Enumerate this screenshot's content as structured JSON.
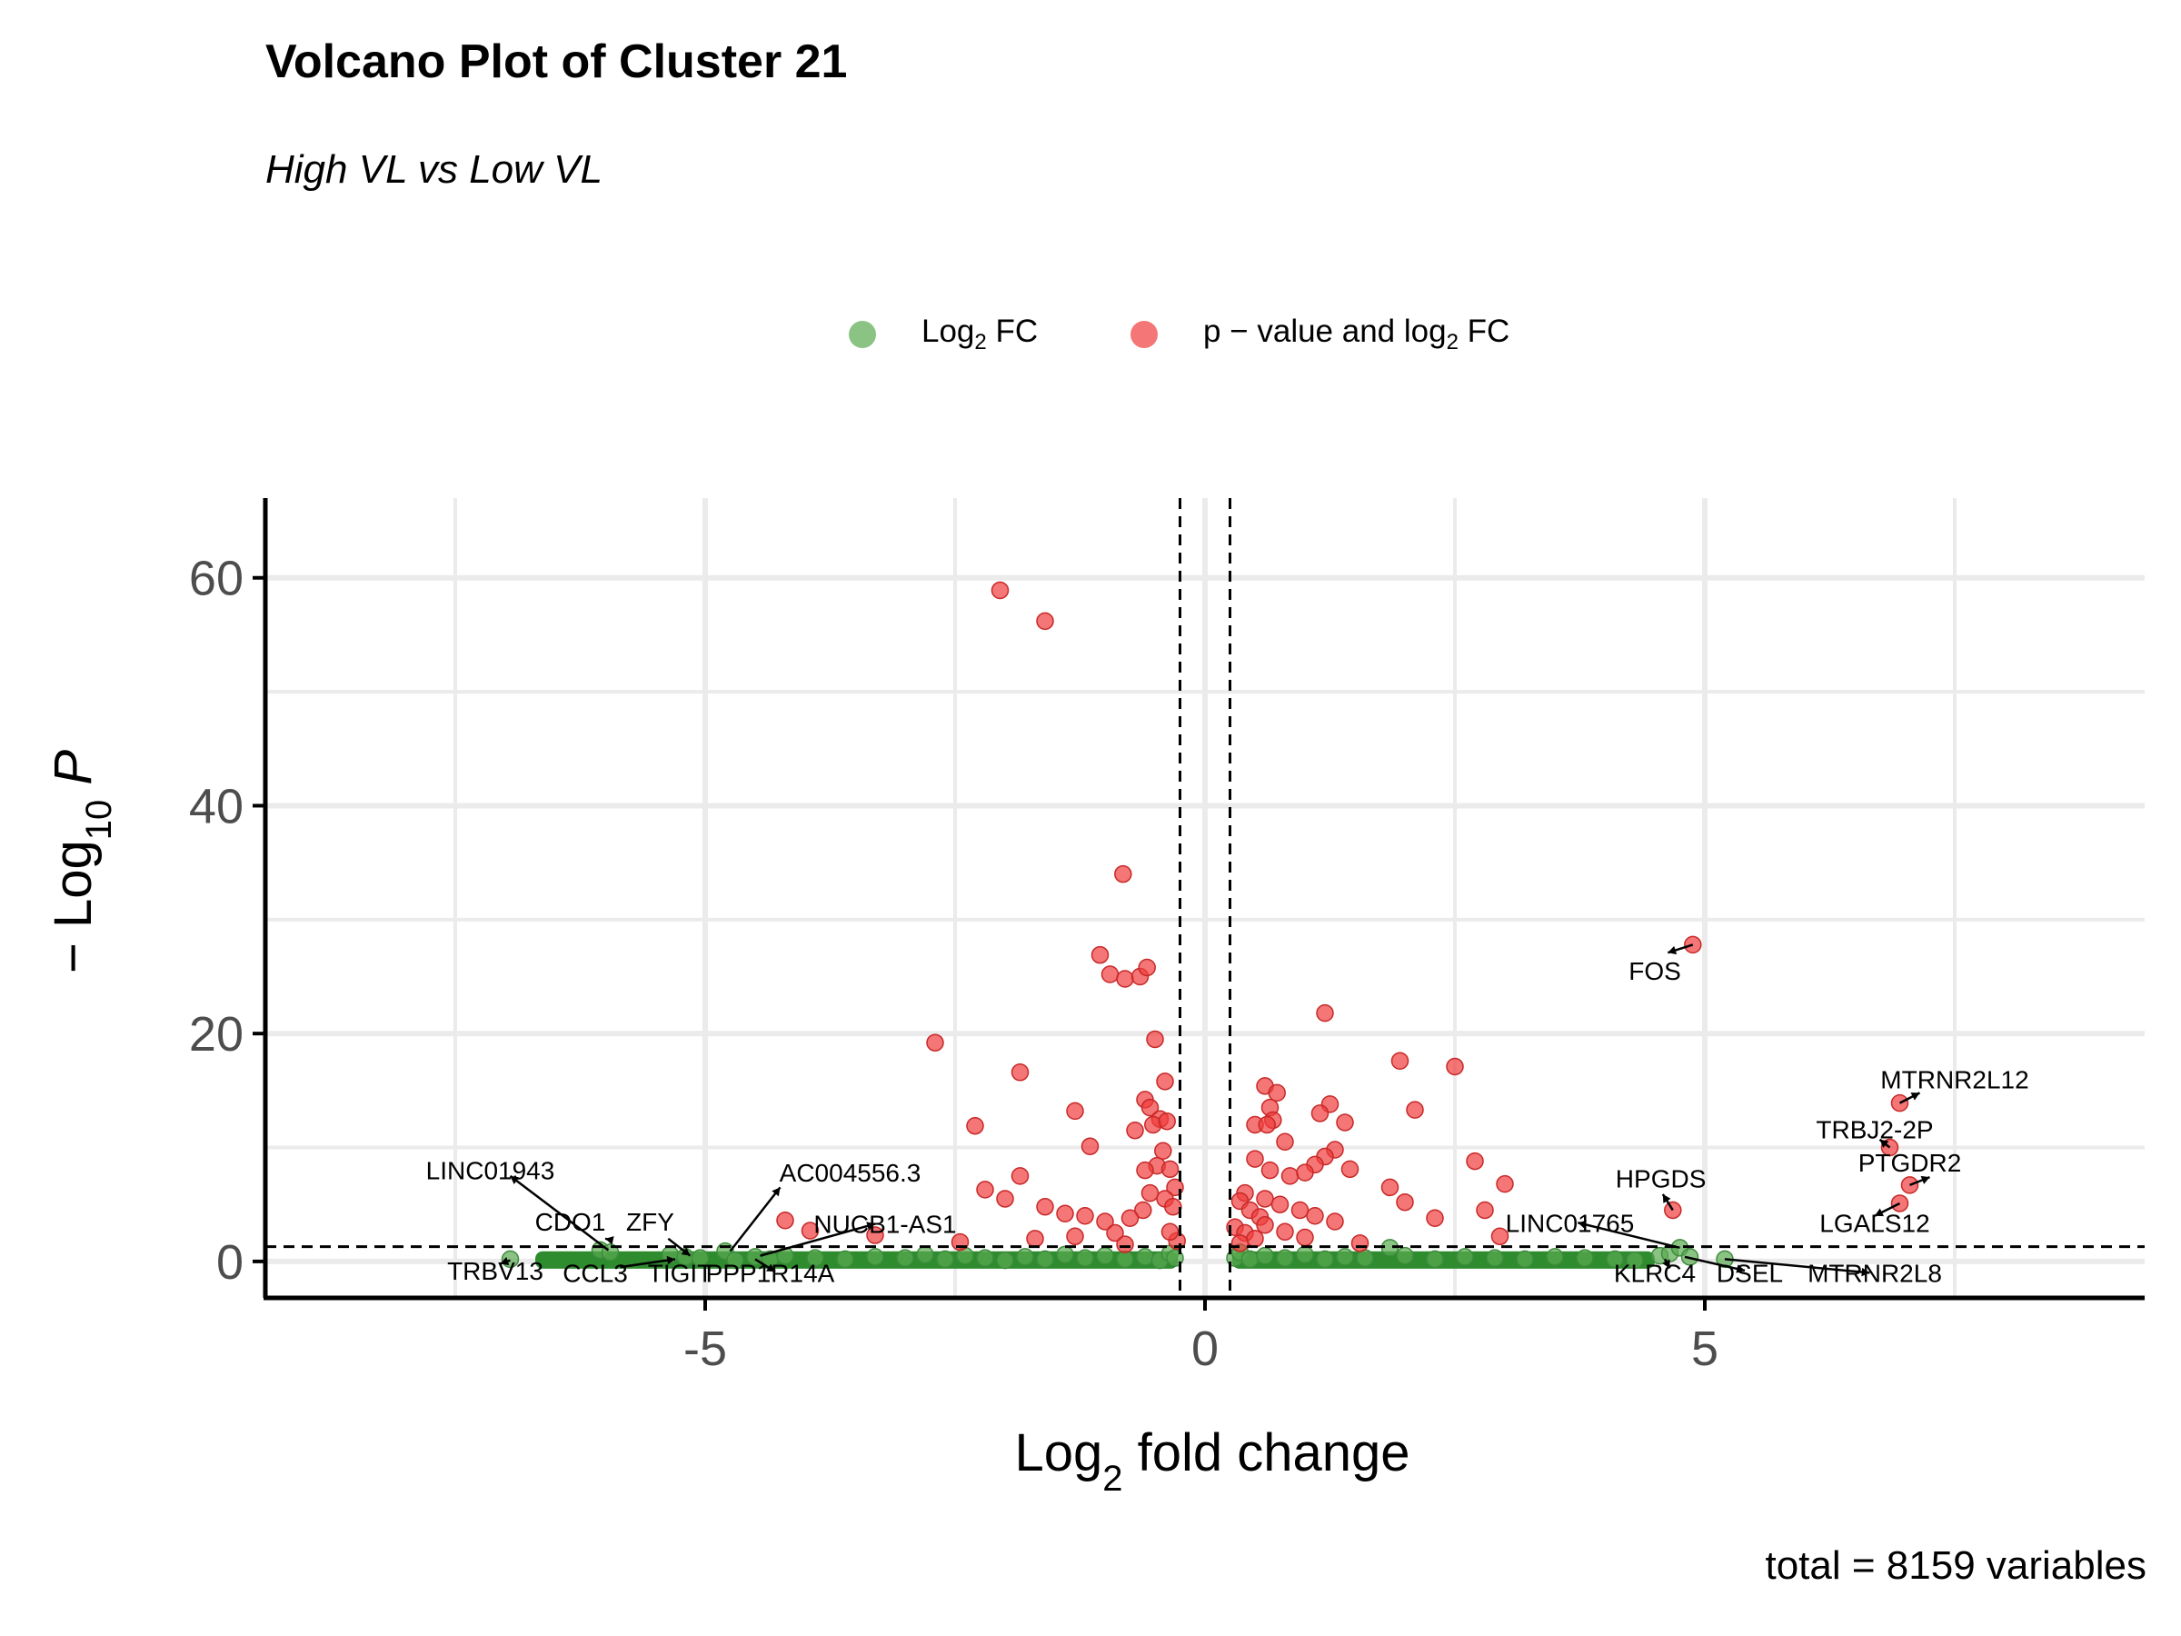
{
  "chart_data": {
    "type": "scatter",
    "title": "Volcano Plot of Cluster 21",
    "subtitle": "High VL vs Low VL",
    "caption": "total = 8159 variables",
    "xlabel": "Log2 fold change",
    "ylabel": "− Log10 P",
    "xlim": [
      -9.4,
      9.4
    ],
    "ylim": [
      -3.2,
      67
    ],
    "x_ticks": [
      -5,
      0,
      5
    ],
    "x_tick_labels": [
      "-5",
      "0",
      "5"
    ],
    "y_ticks": [
      0,
      20,
      40,
      60
    ],
    "y_tick_labels": [
      "0",
      "20",
      "40",
      "60"
    ],
    "grid": true,
    "legend_position": "top",
    "cutoffs": {
      "log2fc": [
        -0.25,
        0.25
      ],
      "neg_log10_p": 1.3
    },
    "series": [
      {
        "name": "Log2 FC",
        "label_main": "Log",
        "label_sub": "2",
        "label_rest": " FC",
        "color": "#5aaa50",
        "points": [
          [
            -6.95,
            0.2
          ],
          [
            -6.05,
            1.0
          ],
          [
            -5.95,
            0.8
          ],
          [
            -5.35,
            0.6
          ],
          [
            -5.2,
            0.4
          ],
          [
            -5.05,
            0.3
          ],
          [
            -4.8,
            0.9
          ],
          [
            -4.7,
            0.1
          ],
          [
            -4.5,
            0.4
          ],
          [
            -4.35,
            0.2
          ],
          [
            -4.2,
            0.5
          ],
          [
            -3.9,
            0.3
          ],
          [
            -3.6,
            0.2
          ],
          [
            -3.3,
            0.4
          ],
          [
            -3.0,
            0.3
          ],
          [
            -2.8,
            0.6
          ],
          [
            -2.6,
            0.2
          ],
          [
            -2.4,
            0.5
          ],
          [
            -2.2,
            0.3
          ],
          [
            -2.0,
            0.1
          ],
          [
            -1.8,
            0.4
          ],
          [
            -1.6,
            0.2
          ],
          [
            -1.4,
            0.6
          ],
          [
            -1.2,
            0.3
          ],
          [
            -1.0,
            0.5
          ],
          [
            -0.8,
            0.2
          ],
          [
            -0.6,
            0.4
          ],
          [
            -0.45,
            0.1
          ],
          [
            -0.35,
            0.7
          ],
          [
            -0.3,
            0.3
          ],
          [
            0.3,
            0.3
          ],
          [
            0.35,
            0.8
          ],
          [
            0.45,
            0.2
          ],
          [
            0.6,
            0.5
          ],
          [
            0.8,
            0.3
          ],
          [
            1.0,
            0.6
          ],
          [
            1.2,
            0.2
          ],
          [
            1.4,
            0.4
          ],
          [
            1.6,
            0.3
          ],
          [
            1.85,
            1.2
          ],
          [
            2.0,
            0.5
          ],
          [
            2.3,
            0.2
          ],
          [
            2.6,
            0.4
          ],
          [
            2.9,
            0.3
          ],
          [
            3.2,
            0.2
          ],
          [
            3.5,
            0.4
          ],
          [
            3.8,
            0.3
          ],
          [
            4.1,
            0.2
          ],
          [
            4.3,
            0.1
          ],
          [
            4.55,
            0.5
          ],
          [
            4.65,
            0.7
          ],
          [
            4.75,
            1.2
          ],
          [
            4.85,
            0.4
          ],
          [
            5.2,
            0.2
          ]
        ],
        "bands": [
          [
            -6.7,
            -0.27,
            0.0,
            0.25
          ],
          [
            0.27,
            4.5,
            0.0,
            0.25
          ]
        ]
      },
      {
        "name": "p − value and log2 FC",
        "label_main": "p − value and log",
        "label_sub": "2",
        "label_rest": " FC",
        "color": "#f03c3c",
        "points": [
          [
            -2.05,
            58.9
          ],
          [
            -1.6,
            56.2
          ],
          [
            -0.82,
            34.0
          ],
          [
            -1.05,
            26.9
          ],
          [
            -0.95,
            25.2
          ],
          [
            -0.8,
            24.8
          ],
          [
            -0.65,
            25.0
          ],
          [
            -0.58,
            25.8
          ],
          [
            -0.5,
            19.5
          ],
          [
            -2.7,
            19.2
          ],
          [
            -1.85,
            16.6
          ],
          [
            -0.4,
            15.8
          ],
          [
            -0.6,
            14.2
          ],
          [
            -0.55,
            13.5
          ],
          [
            -0.45,
            12.5
          ],
          [
            -0.52,
            12.0
          ],
          [
            -0.38,
            12.3
          ],
          [
            -1.3,
            13.2
          ],
          [
            -2.3,
            11.9
          ],
          [
            -0.7,
            11.5
          ],
          [
            -1.15,
            10.1
          ],
          [
            -0.42,
            9.7
          ],
          [
            -0.48,
            8.4
          ],
          [
            -0.6,
            8.0
          ],
          [
            -0.35,
            8.1
          ],
          [
            -0.3,
            6.5
          ],
          [
            -0.55,
            6.0
          ],
          [
            -0.4,
            5.5
          ],
          [
            -0.62,
            4.5
          ],
          [
            -1.85,
            7.5
          ],
          [
            -2.0,
            5.5
          ],
          [
            -2.2,
            6.3
          ],
          [
            -1.6,
            4.8
          ],
          [
            -1.4,
            4.2
          ],
          [
            -1.2,
            4.0
          ],
          [
            -1.0,
            3.5
          ],
          [
            -0.9,
            2.5
          ],
          [
            -0.75,
            3.8
          ],
          [
            -4.2,
            3.6
          ],
          [
            -3.95,
            2.7
          ],
          [
            -3.3,
            2.3
          ],
          [
            -2.45,
            1.7
          ],
          [
            -1.7,
            2.0
          ],
          [
            -1.3,
            2.2
          ],
          [
            -0.8,
            1.5
          ],
          [
            -0.28,
            1.8
          ],
          [
            -0.35,
            2.6
          ],
          [
            -0.32,
            4.8
          ],
          [
            4.88,
            27.8
          ],
          [
            1.2,
            21.8
          ],
          [
            1.95,
            17.6
          ],
          [
            2.5,
            17.1
          ],
          [
            0.6,
            15.4
          ],
          [
            0.72,
            14.8
          ],
          [
            1.25,
            13.8
          ],
          [
            1.15,
            13.0
          ],
          [
            0.65,
            13.5
          ],
          [
            2.1,
            13.3
          ],
          [
            0.68,
            12.4
          ],
          [
            1.4,
            12.2
          ],
          [
            0.5,
            12.0
          ],
          [
            0.62,
            12.0
          ],
          [
            0.8,
            10.5
          ],
          [
            1.3,
            9.8
          ],
          [
            1.2,
            9.2
          ],
          [
            1.1,
            8.5
          ],
          [
            0.5,
            9.0
          ],
          [
            0.65,
            8.0
          ],
          [
            0.85,
            7.5
          ],
          [
            1.0,
            7.8
          ],
          [
            1.45,
            8.1
          ],
          [
            2.7,
            8.8
          ],
          [
            3.0,
            6.8
          ],
          [
            1.85,
            6.5
          ],
          [
            0.4,
            6.0
          ],
          [
            0.6,
            5.5
          ],
          [
            0.75,
            5.0
          ],
          [
            0.95,
            4.5
          ],
          [
            1.1,
            4.0
          ],
          [
            1.3,
            3.5
          ],
          [
            0.35,
            5.3
          ],
          [
            0.45,
            4.5
          ],
          [
            0.55,
            3.9
          ],
          [
            0.3,
            3.0
          ],
          [
            0.4,
            2.5
          ],
          [
            0.5,
            2.0
          ],
          [
            0.35,
            1.6
          ],
          [
            2.0,
            5.2
          ],
          [
            2.3,
            3.8
          ],
          [
            2.95,
            2.2
          ],
          [
            1.55,
            1.6
          ],
          [
            2.8,
            4.5
          ],
          [
            1.0,
            2.1
          ],
          [
            0.8,
            2.6
          ],
          [
            0.6,
            3.2
          ],
          [
            6.95,
            13.9
          ],
          [
            6.85,
            10.0
          ],
          [
            7.05,
            6.7
          ],
          [
            6.95,
            5.1
          ],
          [
            4.68,
            4.5
          ]
        ]
      }
    ],
    "labels": [
      {
        "gene": "LINC01943",
        "text_at": [
          -7.15,
          8.0
        ],
        "point": [
          -5.97,
          1.0
        ]
      },
      {
        "gene": "CDO1",
        "text_at": [
          -6.35,
          3.5
        ],
        "point": [
          -5.95,
          1.9
        ]
      },
      {
        "gene": "ZFY",
        "text_at": [
          -5.55,
          3.5
        ],
        "point": [
          -5.37,
          2.0
        ]
      },
      {
        "gene": "TRBV13",
        "text_at": [
          -7.1,
          -0.8
        ],
        "point": [
          -6.95,
          0.1
        ]
      },
      {
        "gene": "CCL3",
        "text_at": [
          -6.1,
          -1.0
        ],
        "point": [
          -5.85,
          -0.5
        ]
      },
      {
        "gene": "TIGIT",
        "text_at": [
          -5.25,
          -1.0
        ],
        "point": [
          -5.1,
          0.2
        ]
      },
      {
        "gene": "AC004556.3",
        "text_at": [
          -3.55,
          7.8
        ],
        "point": [
          -4.25,
          6.5
        ]
      },
      {
        "gene": "NUCB1-AS1",
        "text_at": [
          -3.2,
          3.3
        ],
        "point": [
          -3.3,
          3.3
        ]
      },
      {
        "gene": "PPP1R14A",
        "text_at": [
          -4.35,
          -1.0
        ],
        "point": [
          -4.3,
          -0.9
        ]
      },
      {
        "gene": "FOS",
        "text_at": [
          4.5,
          25.5
        ],
        "point": [
          4.63,
          27.1
        ]
      },
      {
        "gene": "MTRNR2L12",
        "text_at": [
          7.5,
          16.0
        ],
        "point": [
          7.15,
          14.8
        ]
      },
      {
        "gene": "TRBJ2-2P",
        "text_at": [
          6.7,
          11.6
        ],
        "point": [
          6.75,
          10.7
        ]
      },
      {
        "gene": "PTGDR2",
        "text_at": [
          7.05,
          8.7
        ],
        "point": [
          7.25,
          7.4
        ]
      },
      {
        "gene": "HPGDS",
        "text_at": [
          4.56,
          7.3
        ],
        "point": [
          4.58,
          5.9
        ]
      },
      {
        "gene": "LGALS12",
        "text_at": [
          6.7,
          3.4
        ],
        "point": [
          6.7,
          4.8
        ]
      },
      {
        "gene": "LINC01765",
        "text_at": [
          3.65,
          3.4
        ],
        "point": [
          3.73,
          3.4
        ]
      },
      {
        "gene": "KLRC4",
        "text_at": [
          4.5,
          -1.0
        ],
        "point": [
          4.65,
          -0.6
        ]
      },
      {
        "gene": "DSEL",
        "text_at": [
          5.45,
          -1.0
        ],
        "point": [
          5.4,
          -0.8
        ]
      },
      {
        "gene": "MTRNR2L8",
        "text_at": [
          6.7,
          -1.0
        ],
        "point": [
          6.65,
          -1.0
        ]
      }
    ],
    "label_lines": [
      [
        [
          -5.97,
          1.0
        ],
        [
          -6.95,
          7.5
        ]
      ],
      [
        [
          -5.95,
          1.9
        ],
        [
          -6.0,
          2.0
        ]
      ],
      [
        [
          -5.37,
          2.0
        ],
        [
          -5.15,
          0.5
        ]
      ],
      [
        [
          -6.95,
          0.1
        ],
        [
          -7.05,
          -0.2
        ]
      ],
      [
        [
          -5.85,
          -0.5
        ],
        [
          -5.3,
          0.2
        ]
      ],
      [
        [
          -4.75,
          0.9
        ],
        [
          -4.25,
          6.5
        ]
      ],
      [
        [
          -4.45,
          0.5
        ],
        [
          -3.3,
          3.3
        ]
      ],
      [
        [
          -4.5,
          0.2
        ],
        [
          -4.3,
          -0.9
        ]
      ],
      [
        [
          4.88,
          27.8
        ],
        [
          4.63,
          27.1
        ]
      ],
      [
        [
          6.95,
          13.9
        ],
        [
          7.15,
          14.8
        ]
      ],
      [
        [
          6.85,
          10.0
        ],
        [
          6.75,
          10.7
        ]
      ],
      [
        [
          7.05,
          6.7
        ],
        [
          7.25,
          7.4
        ]
      ],
      [
        [
          4.68,
          4.5
        ],
        [
          4.58,
          5.9
        ]
      ],
      [
        [
          6.95,
          5.1
        ],
        [
          6.7,
          4.0
        ]
      ],
      [
        [
          4.75,
          1.2
        ],
        [
          3.73,
          3.4
        ]
      ],
      [
        [
          4.6,
          0.2
        ],
        [
          4.65,
          -0.6
        ]
      ],
      [
        [
          4.8,
          0.4
        ],
        [
          5.4,
          -0.8
        ]
      ],
      [
        [
          5.2,
          0.2
        ],
        [
          6.65,
          -1.0
        ]
      ]
    ]
  }
}
